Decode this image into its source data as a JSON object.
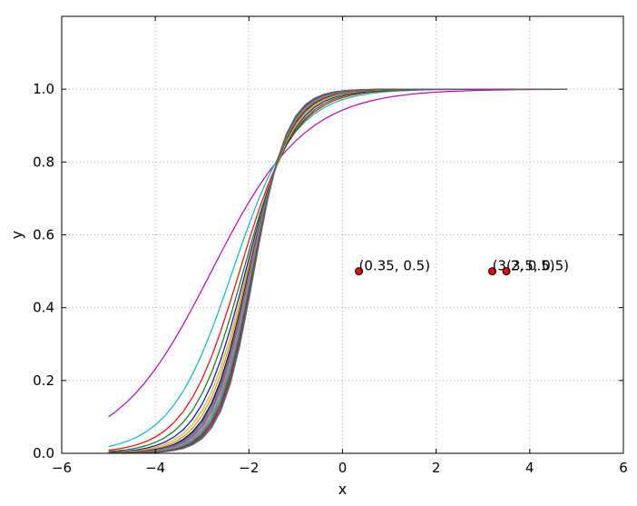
{
  "chart_data": {
    "type": "line",
    "title": "",
    "xlabel": "x",
    "ylabel": "y",
    "xlim": [
      -6,
      6
    ],
    "ylim": [
      0.0,
      1.2
    ],
    "xticks": [
      -6,
      -4,
      -2,
      0,
      2,
      4,
      6
    ],
    "xtick_labels": [
      "−6",
      "−4",
      "−2",
      "0",
      "2",
      "4",
      "6"
    ],
    "yticks": [
      0.0,
      0.2,
      0.4,
      0.6,
      0.8,
      1.0
    ],
    "ytick_labels": [
      "0.0",
      "0.2",
      "0.4",
      "0.6",
      "0.8",
      "1.0"
    ],
    "grid": true,
    "legend": "none",
    "x": [
      -5.0,
      -4.8,
      -4.6,
      -4.4,
      -4.2,
      -4.0,
      -3.8,
      -3.6,
      -3.4,
      -3.2,
      -3.0,
      -2.8,
      -2.6,
      -2.4,
      -2.2,
      -2.0,
      -1.8,
      -1.6,
      -1.4,
      -1.2,
      -1.0,
      -0.8,
      -0.6,
      -0.4,
      -0.2,
      0.0,
      0.2,
      0.4,
      0.6,
      0.8,
      1.0,
      1.2,
      1.4,
      1.6,
      1.8,
      2.0,
      2.2,
      2.4,
      2.6,
      2.8,
      3.0,
      3.2,
      3.4,
      3.6,
      3.8,
      4.0,
      4.2,
      4.4,
      4.6,
      4.8
    ],
    "series": [
      {
        "color": "#bf00bf",
        "k": 1.0,
        "x0": -2.8
      },
      {
        "color": "#00bfbf",
        "k": 1.5,
        "x0": -2.35
      },
      {
        "color": "#ff0000",
        "k": 1.7,
        "x0": -2.2
      },
      {
        "color": "#008000",
        "k": 1.85,
        "x0": -2.12
      },
      {
        "color": "#0000ff",
        "k": 2.0,
        "x0": -2.07
      },
      {
        "color": "#bfbf00",
        "k": 2.1,
        "x0": -2.04
      },
      {
        "color": "#ff7f0e",
        "k": 2.2,
        "x0": -2.02
      },
      {
        "color": "#000000",
        "k": 2.3,
        "x0": -2.0
      },
      {
        "color": "#1f77b4",
        "k": 2.35,
        "x0": -1.99
      },
      {
        "color": "#9467bd",
        "k": 2.4,
        "x0": -1.98
      },
      {
        "color": "#8c564b",
        "k": 2.45,
        "x0": -1.97
      },
      {
        "color": "#e377c2",
        "k": 2.5,
        "x0": -1.96
      },
      {
        "color": "#7f7f7f",
        "k": 2.55,
        "x0": -1.95
      },
      {
        "color": "#17becf",
        "k": 2.6,
        "x0": -1.94
      },
      {
        "color": "#2ca02c",
        "k": 2.65,
        "x0": -1.93
      },
      {
        "color": "#d62728",
        "k": 2.7,
        "x0": -1.92
      },
      {
        "color": "#404080",
        "k": 2.75,
        "x0": -1.91
      },
      {
        "color": "#805080",
        "k": 2.8,
        "x0": -1.9
      },
      {
        "color": "#606060",
        "k": 2.85,
        "x0": -1.89
      }
    ],
    "points": [
      {
        "x": 0.35,
        "y": 0.5,
        "label": "(0.35, 0.5)",
        "color": "#ff0000"
      },
      {
        "x": 3.2,
        "y": 0.5,
        "label": "(3.2, 0.5)",
        "color": "#ff0000"
      },
      {
        "x": 3.5,
        "y": 0.5,
        "label": "(3.5, 0.5)",
        "color": "#ff0000"
      }
    ]
  }
}
